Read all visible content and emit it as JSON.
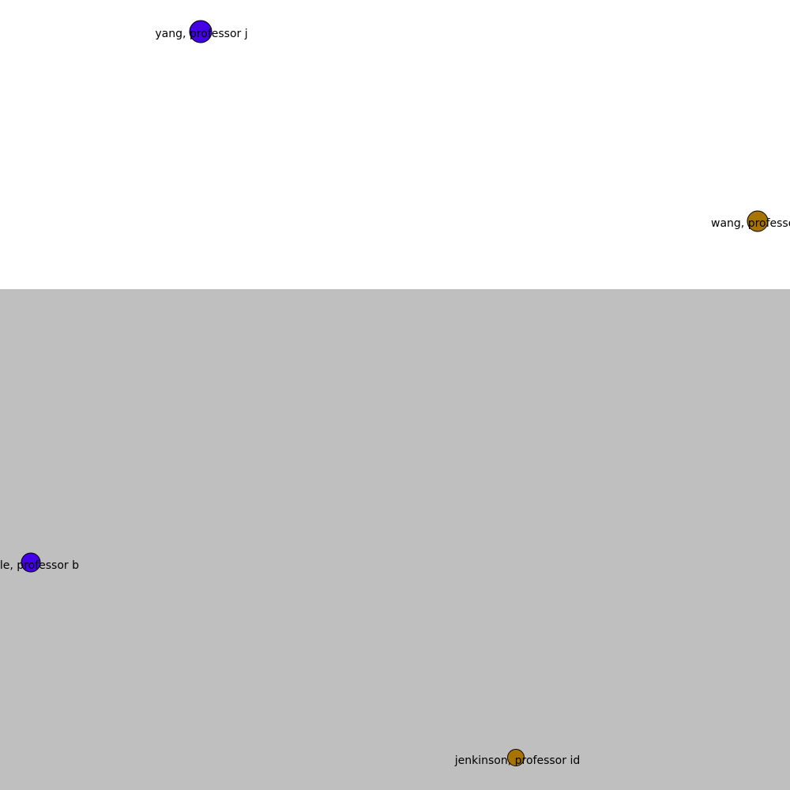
{
  "colors": {
    "background_top": "#ffffff",
    "background_bottom": "#bfbfbf",
    "node_stroke": "#000000"
  },
  "nodes": [
    {
      "id": "yang",
      "label": "yang, professor j",
      "color": "#4400e6",
      "icon": "node-circle"
    },
    {
      "id": "wang",
      "label": "wang, professo",
      "color": "#a87400",
      "icon": "node-circle"
    },
    {
      "id": "le",
      "label": "le, professor b",
      "color": "#4400e6",
      "icon": "node-circle"
    },
    {
      "id": "jenkinson",
      "label": "jenkinson, professor id",
      "color": "#a87400",
      "icon": "node-circle"
    }
  ]
}
